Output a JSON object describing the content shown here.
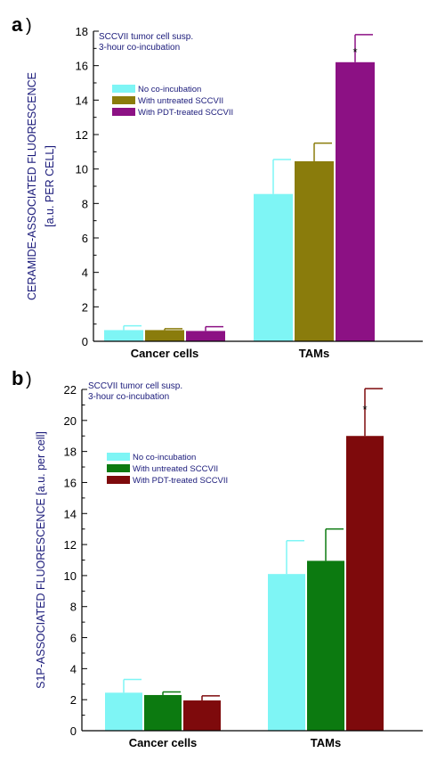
{
  "chart_data": [
    {
      "type": "bar",
      "panel": "a",
      "categories": [
        "Cancer cells",
        "TAMs"
      ],
      "ylabel_lines": [
        "CERAMIDE-ASSOCIATED FLUORESCENCE",
        "[a.u. PER CELL]"
      ],
      "ylim": [
        0,
        18
      ],
      "yticks": [
        0,
        2,
        4,
        6,
        8,
        10,
        12,
        14,
        16,
        18
      ],
      "annotation": [
        "SCCVII tumor cell susp.",
        "3-hour co-incubation"
      ],
      "legend_position": "center-left",
      "series": [
        {
          "name": "No co-incubation",
          "color": "#7ef5f5",
          "values": [
            0.65,
            8.55
          ],
          "errors": [
            0.25,
            2.0
          ]
        },
        {
          "name": "With untreated SCCVII",
          "color": "#8a7c0c",
          "values": [
            0.65,
            10.45
          ],
          "errors": [
            0.08,
            1.05
          ]
        },
        {
          "name": "With PDT-treated SCCVII",
          "color": "#8c1184",
          "values": [
            0.6,
            16.2
          ],
          "errors": [
            0.25,
            1.6
          ]
        }
      ],
      "significance": [
        {
          "category": "TAMs",
          "series": 2,
          "mark": "*"
        }
      ]
    },
    {
      "type": "bar",
      "panel": "b",
      "categories": [
        "Cancer cells",
        "TAMs"
      ],
      "ylabel_lines": [
        "S1P-ASSOCIATED FLUORESCENCE [a.u. per cell]"
      ],
      "ylim": [
        0,
        22
      ],
      "yticks": [
        0,
        2,
        4,
        6,
        8,
        10,
        12,
        14,
        16,
        18,
        20,
        22
      ],
      "annotation": [
        "SCCVII tumor cell susp.",
        "3-hour co-incubation"
      ],
      "legend_position": "center-left",
      "series": [
        {
          "name": "No co-incubation",
          "color": "#7ef5f5",
          "values": [
            2.45,
            10.1
          ],
          "errors": [
            0.85,
            2.15
          ]
        },
        {
          "name": "With untreated SCCVII",
          "color": "#0c7a10",
          "values": [
            2.3,
            10.95
          ],
          "errors": [
            0.2,
            2.05
          ]
        },
        {
          "name": "With PDT-treated SCCVII",
          "color": "#7e0a0c",
          "values": [
            1.95,
            19.0
          ],
          "errors": [
            0.3,
            3.05
          ]
        }
      ],
      "significance": [
        {
          "category": "TAMs",
          "series": 2,
          "mark": "*"
        }
      ]
    }
  ],
  "panel_labels": [
    {
      "letter": "a",
      "paren": ")"
    },
    {
      "letter": "b",
      "paren": ")"
    }
  ]
}
